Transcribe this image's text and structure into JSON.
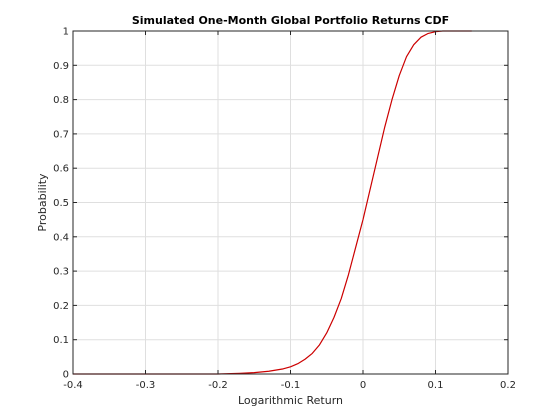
{
  "chart_data": {
    "type": "line",
    "title": "Simulated One-Month Global Portfolio Returns CDF",
    "xlabel": "Logarithmic Return",
    "ylabel": "Probability",
    "xlim": [
      -0.4,
      0.2
    ],
    "ylim": [
      0,
      1
    ],
    "xticks": [
      "-0.4",
      "-0.3",
      "-0.2",
      "-0.1",
      "0",
      "0.1",
      "0.2"
    ],
    "yticks": [
      "0",
      "0.1",
      "0.2",
      "0.3",
      "0.4",
      "0.5",
      "0.6",
      "0.7",
      "0.8",
      "0.9",
      "1"
    ],
    "grid": true,
    "series": [
      {
        "color": "#cc0000",
        "x": [
          -0.4,
          -0.25,
          -0.2,
          -0.17,
          -0.15,
          -0.13,
          -0.11,
          -0.1,
          -0.09,
          -0.08,
          -0.07,
          -0.06,
          -0.05,
          -0.04,
          -0.03,
          -0.02,
          -0.01,
          0.0,
          0.01,
          0.02,
          0.03,
          0.04,
          0.05,
          0.06,
          0.07,
          0.08,
          0.09,
          0.1,
          0.11,
          0.12,
          0.15
        ],
        "y": [
          0.0,
          0.0,
          0.0,
          0.002,
          0.004,
          0.008,
          0.015,
          0.021,
          0.03,
          0.043,
          0.06,
          0.085,
          0.12,
          0.165,
          0.22,
          0.29,
          0.37,
          0.45,
          0.54,
          0.63,
          0.72,
          0.8,
          0.87,
          0.925,
          0.96,
          0.982,
          0.993,
          0.998,
          1.0,
          1.0,
          1.0
        ]
      }
    ]
  }
}
